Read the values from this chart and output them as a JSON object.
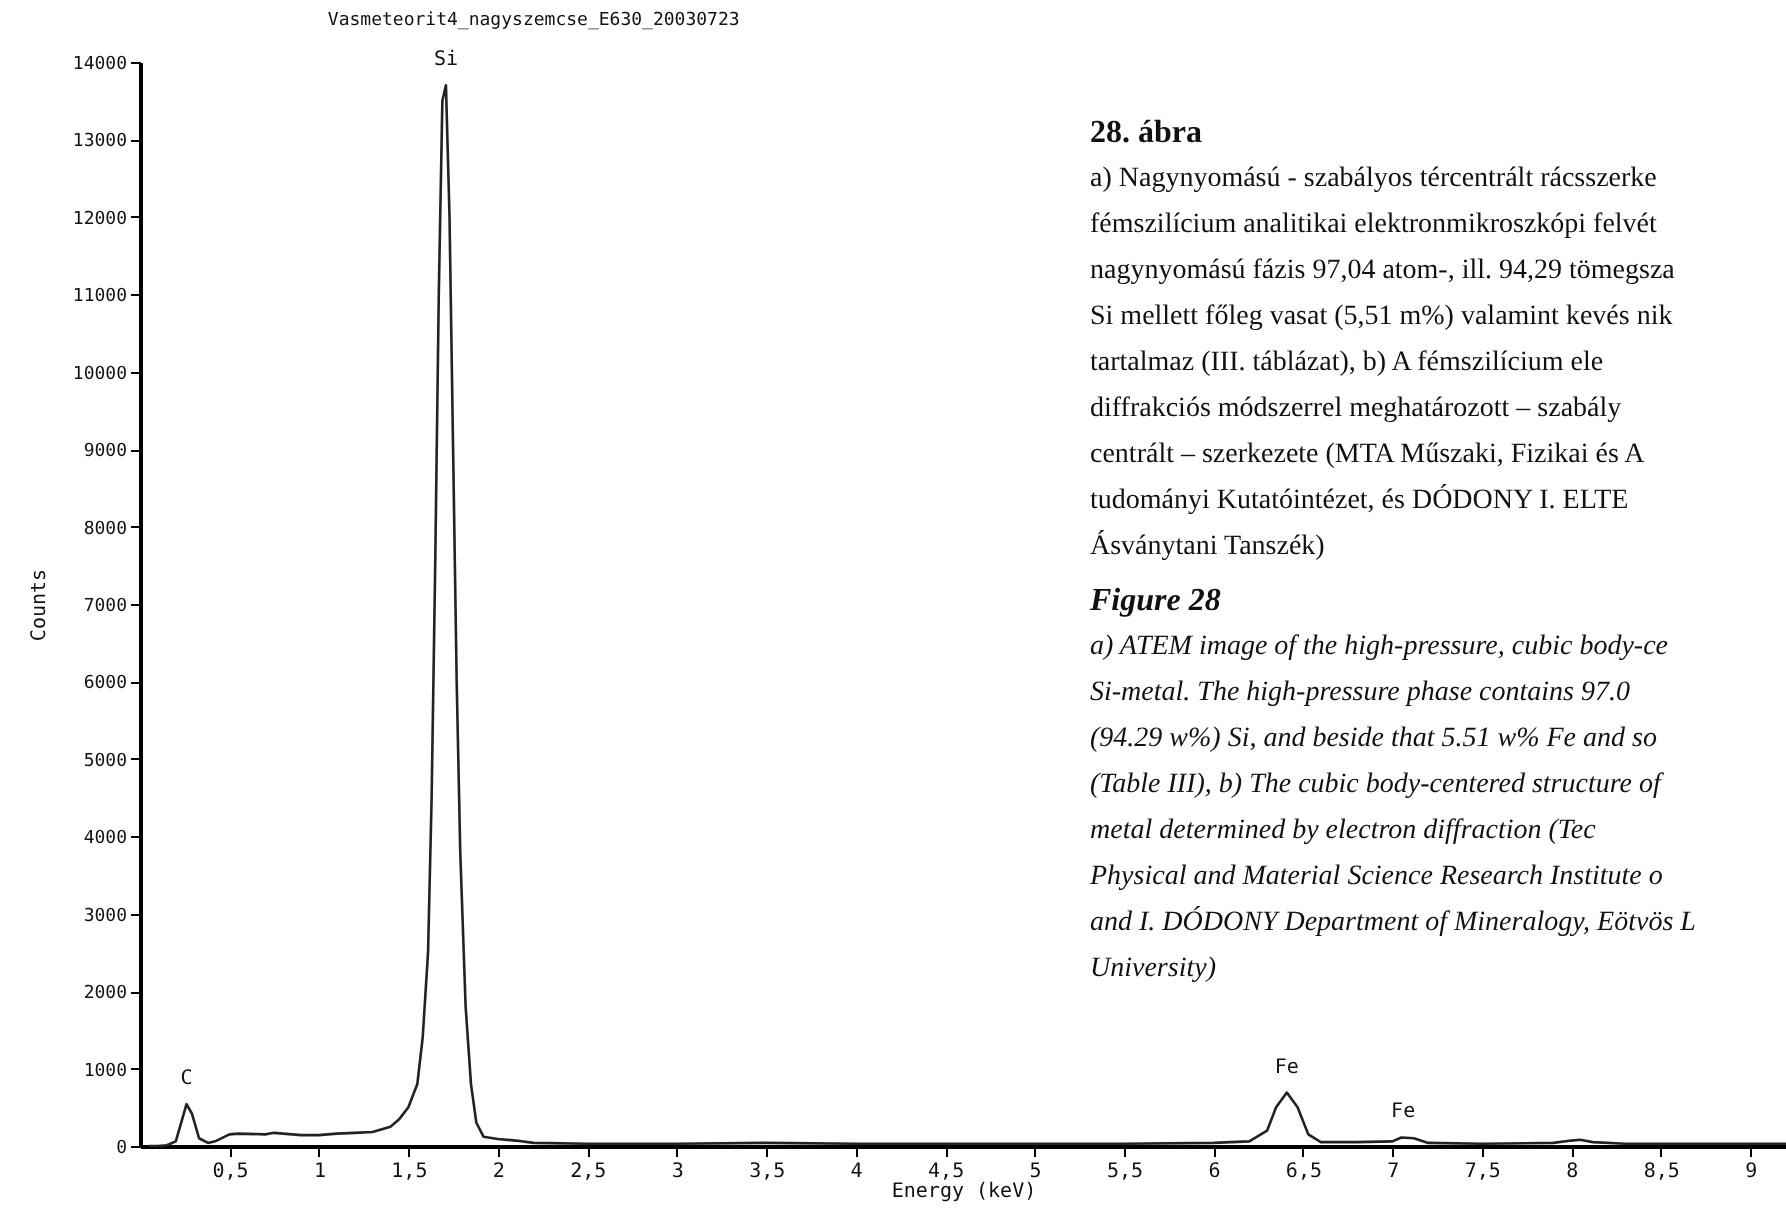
{
  "chart_data": {
    "type": "line",
    "title": "Vasmeteorit4_nagyszemcse_E630_20030723",
    "xlabel": "Energy (keV)",
    "ylabel": "Counts",
    "x": [
      0.05,
      0.1,
      0.15,
      0.2,
      0.23,
      0.26,
      0.29,
      0.33,
      0.38,
      0.42,
      0.5,
      0.55,
      0.7,
      0.75,
      0.9,
      1.0,
      1.1,
      1.2,
      1.3,
      1.4,
      1.45,
      1.5,
      1.55,
      1.58,
      1.61,
      1.63,
      1.65,
      1.67,
      1.69,
      1.71,
      1.73,
      1.75,
      1.77,
      1.79,
      1.82,
      1.85,
      1.88,
      1.92,
      2.0,
      2.1,
      2.2,
      2.5,
      3,
      3.5,
      4,
      4.5,
      5,
      5.5,
      6,
      6.2,
      6.3,
      6.35,
      6.41,
      6.47,
      6.53,
      6.6,
      6.8,
      7.0,
      7.05,
      7.12,
      7.2,
      7.5,
      7.9,
      8.0,
      8.05,
      8.12,
      8.3,
      8.5,
      9,
      9.2
    ],
    "series": [
      {
        "color": "#222222",
        "values": [
          0,
          0,
          10,
          60,
          300,
          540,
          420,
          100,
          40,
          60,
          150,
          160,
          150,
          170,
          140,
          140,
          160,
          170,
          180,
          250,
          350,
          500,
          800,
          1400,
          2500,
          4500,
          7500,
          11000,
          13500,
          13700,
          12000,
          9000,
          6000,
          3800,
          1800,
          800,
          300,
          120,
          90,
          70,
          40,
          30,
          30,
          40,
          30,
          30,
          30,
          30,
          40,
          60,
          200,
          500,
          690,
          500,
          150,
          50,
          50,
          60,
          110,
          100,
          40,
          30,
          40,
          70,
          80,
          50,
          30,
          30,
          30,
          30
        ]
      }
    ],
    "xlim": [
      0,
      9.2
    ],
    "xticks": [
      {
        "value": 0.5,
        "label": "0,5"
      },
      1,
      {
        "value": 1.5,
        "label": "1,5"
      },
      2,
      {
        "value": 2.5,
        "label": "2,5"
      },
      3,
      {
        "value": 3.5,
        "label": "3,5"
      },
      4,
      {
        "value": 4.5,
        "label": "4,5"
      },
      5,
      {
        "value": 5.5,
        "label": "5,5"
      },
      6,
      {
        "value": 6.5,
        "label": "6,5"
      },
      7,
      {
        "value": 7.5,
        "label": "7,5"
      },
      8,
      {
        "value": 8.5,
        "label": "8,5"
      },
      9
    ],
    "ylim": [
      0,
      14000
    ],
    "yticks": [
      0,
      1000,
      2000,
      3000,
      4000,
      5000,
      6000,
      7000,
      8000,
      9000,
      10000,
      11000,
      12000,
      13000,
      14000
    ],
    "grid": false,
    "marker": "none",
    "line_style": "solid",
    "annotations": [
      {
        "text": "C",
        "x": 0.26,
        "y": 540
      },
      {
        "text": "Si",
        "x": 1.71,
        "y": 13700
      },
      {
        "text": "Fe",
        "x": 6.41,
        "y": 690
      },
      {
        "text": "Fe",
        "x": 7.06,
        "y": 110
      },
      "28. ábra",
      "a) Nagynyomású - szabályos tércentrált rácsszerke\nfémszilícium analitikai elektronmikroszkópi felvét\nnagynyomású fázis 97,04 atom-, ill. 94,29 tömegsza\nSi mellett főleg vasat (5,51 m%) valamint kevés nik\ntartalmaz (III. táblázat), b) A fémszilícium ele\ndiffrakciós módszerrel meghatározott – szabály\ncentrált – szerkezete (MTA Műszaki, Fizikai és A\ntudományi Kutatóintézet, és DÓDONY I. ELTE\nÁsványtani Tanszék)",
      "Figure 28",
      "a) ATEM image of the high-pressure, cubic body-ce\nSi-metal. The high-pressure phase contains 97.0\n(94.29 w%) Si, and beside that 5.51 w% Fe and so\n(Table III), b) The cubic body-centered structure of\nmetal determined by electron diffraction (Tec\nPhysical and Material Science Research Institute o\nand I. DÓDONY Department of Mineralogy, Eötvös L\nUniversity)"
    ]
  }
}
